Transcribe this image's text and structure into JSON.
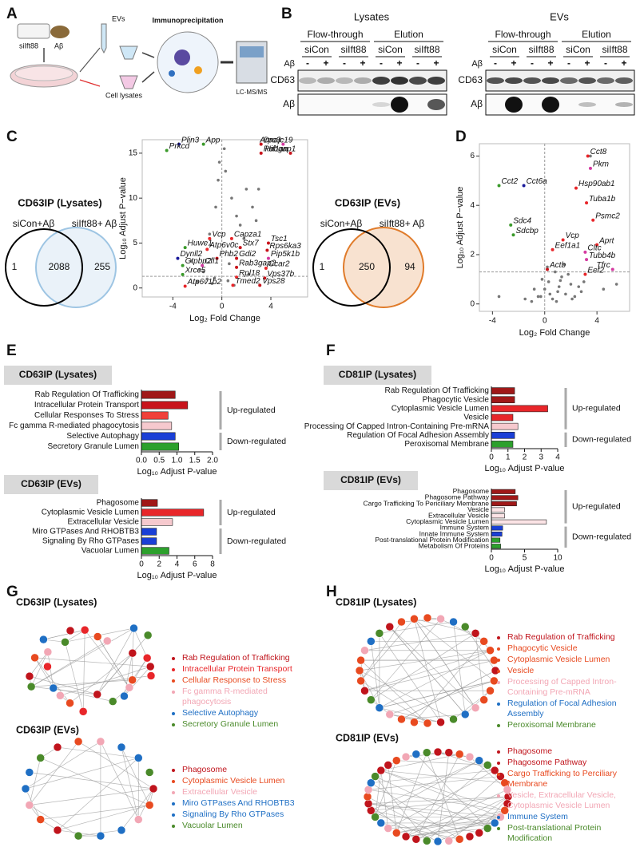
{
  "panel_labels": [
    "A",
    "B",
    "C",
    "D",
    "E",
    "F",
    "G",
    "H"
  ],
  "a": {
    "sirna": "siIft88",
    "treatment": "Aβ",
    "evs": "EVs",
    "lysates": "Cell lysates",
    "method": "Immunoprecipitation",
    "instrument": "LC-MS/MS"
  },
  "b": {
    "blots": [
      {
        "title": "Lysates",
        "groups": [
          "Flow-through",
          "Elution"
        ],
        "conditions": [
          "siCon",
          "siIft88",
          "siCon",
          "siIft88"
        ],
        "treatment_label": "Aβ",
        "treatments": [
          "-",
          "+",
          "-",
          "+",
          "-",
          "+",
          "-",
          "+"
        ],
        "rows": [
          "CD63",
          "Aβ"
        ]
      },
      {
        "title": "EVs",
        "groups": [
          "Flow-through",
          "Elution"
        ],
        "conditions": [
          "siCon",
          "siIft88",
          "siCon",
          "siIft88"
        ],
        "treatment_label": "Aβ",
        "treatments": [
          "-",
          "+",
          "-",
          "+",
          "-",
          "+",
          "-",
          "+"
        ],
        "rows": [
          "CD63",
          "Aβ"
        ]
      }
    ]
  },
  "venn": [
    {
      "title": "CD63IP (Lysates)",
      "sets": [
        "siCon+Aβ",
        "siIft88+ Aβ"
      ],
      "colors": [
        "#000000",
        "#9ec5e3"
      ],
      "counts": [
        1,
        2088,
        255
      ]
    },
    {
      "title": "CD63IP (EVs)",
      "sets": [
        "siCon+Aβ",
        "siIft88+ Aβ"
      ],
      "colors": [
        "#000000",
        "#e07b2a"
      ],
      "counts": [
        1,
        250,
        94
      ]
    }
  ],
  "chart_data": [
    {
      "type": "scatter",
      "xlabel": "Log₂ Fold Change",
      "ylabel": "Log₁₀ Adjust P−value",
      "xlim": [
        -6.5,
        7
      ],
      "ylim": [
        -1,
        16.5
      ],
      "xticks": [
        -4,
        0,
        4
      ],
      "yticks": [
        0,
        5,
        10,
        15
      ],
      "hline": 1.3,
      "vline": 0,
      "background_points": {
        "x": [
          -2.5,
          -1.8,
          -1,
          -0.5,
          -0.3,
          0.3,
          0.8,
          1.2,
          1.5,
          2,
          2.5,
          3,
          -1.2,
          -0.8,
          0.5,
          1,
          2.2,
          -2,
          -0.2,
          0.2,
          1.8,
          2.8,
          -1.5,
          0.6,
          -0.6
        ],
        "y": [
          3,
          2,
          6,
          9,
          12,
          13,
          10,
          8,
          7,
          11,
          9,
          11,
          1,
          0.5,
          0.8,
          0.3,
          1.5,
          0.7,
          14,
          15.5,
          5.5,
          7.5,
          1.8,
          2.7,
          1.1
        ]
      },
      "points": [
        {
          "label": "Plin3",
          "x": -3.5,
          "y": 16,
          "color": "#1a1a9a"
        },
        {
          "label": "Prkcd",
          "x": -4.5,
          "y": 15.3,
          "color": "#3a9a2a"
        },
        {
          "label": "App",
          "x": -1.5,
          "y": 16,
          "color": "#3a9a2a"
        },
        {
          "label": "Dnajc19",
          "x": 3.2,
          "y": 16,
          "color": "#c8141c"
        },
        {
          "label": "Arpc3",
          "x": 5,
          "y": 16,
          "color": "#d43aa0"
        },
        {
          "label": "Rabgap1",
          "x": 3.2,
          "y": 15,
          "color": "#c8141c"
        },
        {
          "label": "Hif1an",
          "x": 5.6,
          "y": 15,
          "color": "#c8141c"
        },
        {
          "label": "Vcp",
          "x": -1,
          "y": 5.5,
          "color": "#e8262a"
        },
        {
          "label": "Capza1",
          "x": 0.8,
          "y": 5.5,
          "color": "#e8262a"
        },
        {
          "label": "Tsc1",
          "x": 3.8,
          "y": 5,
          "color": "#c8141c"
        },
        {
          "label": "Stx7",
          "x": 1.5,
          "y": 4.5,
          "color": "#c8141c"
        },
        {
          "label": "Rps6ka3",
          "x": 3.7,
          "y": 4.2,
          "color": "#c8141c"
        },
        {
          "label": "Atp6v0c",
          "x": -1.2,
          "y": 4.3,
          "color": "#e8262a"
        },
        {
          "label": "Huwe1",
          "x": -3,
          "y": 4.5,
          "color": "#3a9a2a"
        },
        {
          "label": "Dynll2",
          "x": -3.6,
          "y": 3.3,
          "color": "#1a1a9a"
        },
        {
          "label": "Phb2",
          "x": -0.4,
          "y": 3.3,
          "color": "#c8141c"
        },
        {
          "label": "Gdi2",
          "x": 1.2,
          "y": 3.3,
          "color": "#c8141c"
        },
        {
          "label": "Pip5k1b",
          "x": 3.8,
          "y": 3.3,
          "color": "#d43aa0"
        },
        {
          "label": "Gtpbp2",
          "x": -3.2,
          "y": 2.5,
          "color": "#3a9a2a"
        },
        {
          "label": "Cfl1",
          "x": -1.6,
          "y": 2.5,
          "color": "#d43aa0"
        },
        {
          "label": "Xrcc5",
          "x": -3.2,
          "y": 1.5,
          "color": "#3a9a2a"
        },
        {
          "label": "Rab3gap2",
          "x": 1.2,
          "y": 2.3,
          "color": "#c8141c"
        },
        {
          "label": "Ccar2",
          "x": 3.6,
          "y": 2.2,
          "color": "#e8262a"
        },
        {
          "label": "Rpl18",
          "x": 1.2,
          "y": 1.2,
          "color": "#e8262a"
        },
        {
          "label": "Vps37b",
          "x": 3.5,
          "y": 1.1,
          "color": "#c8141c"
        },
        {
          "label": "Atp6v1b2",
          "x": -3,
          "y": 0.2,
          "color": "#e8262a"
        },
        {
          "label": "Tmed2",
          "x": 0.9,
          "y": 0.3,
          "color": "#e8262a"
        },
        {
          "label": "Vps28",
          "x": 3.1,
          "y": 0.3,
          "color": "#c8141c"
        }
      ]
    },
    {
      "type": "scatter",
      "xlabel": "Log₂ Fold Change",
      "ylabel": "Log₁₀ Adjust P−value",
      "xlim": [
        -5,
        6.5
      ],
      "ylim": [
        -0.3,
        6.5
      ],
      "xticks": [
        -4,
        0,
        4
      ],
      "yticks": [
        0,
        2,
        4,
        6
      ],
      "hline": 1.3,
      "vline": 0,
      "background_points": {
        "x": [
          -0.5,
          0,
          0.3,
          0.6,
          1,
          1.3,
          1.6,
          2,
          2.3,
          2.6,
          -1,
          -0.2,
          0.8,
          1.1,
          1.8,
          2.1,
          0.4,
          -0.8,
          3,
          4.5,
          5.5,
          -3.5,
          -1.5,
          0.2,
          1.5,
          2.8,
          0.9,
          -0.3,
          1.2,
          3.5
        ],
        "y": [
          0.3,
          0.6,
          0.9,
          0.2,
          0.5,
          1.1,
          0.4,
          0.8,
          0.3,
          0.7,
          0.1,
          1.0,
          1.3,
          0.7,
          1.2,
          0.2,
          0.4,
          0.6,
          0.9,
          0.6,
          0.8,
          0.3,
          0.2,
          1.5,
          1.6,
          0.5,
          0.1,
          0.3,
          0.95,
          6.0
        ]
      },
      "points": [
        {
          "label": "Cct8",
          "x": 3.3,
          "y": 6,
          "color": "#e8262a"
        },
        {
          "label": "Pkm",
          "x": 3.5,
          "y": 5.5,
          "color": "#d43aa0"
        },
        {
          "label": "Cct2",
          "x": -3.5,
          "y": 4.8,
          "color": "#3a9a2a"
        },
        {
          "label": "Cct6a",
          "x": -1.6,
          "y": 4.8,
          "color": "#1a1a9a"
        },
        {
          "label": "Hsp90ab1",
          "x": 2.4,
          "y": 4.7,
          "color": "#e8262a"
        },
        {
          "label": "Tuba1b",
          "x": 3.2,
          "y": 4.1,
          "color": "#e8262a"
        },
        {
          "label": "Sdc4",
          "x": -2.6,
          "y": 3.2,
          "color": "#3a9a2a"
        },
        {
          "label": "Psmc2",
          "x": 3.7,
          "y": 3.4,
          "color": "#e8262a"
        },
        {
          "label": "Sdcbp",
          "x": -2.4,
          "y": 2.8,
          "color": "#3a9a2a"
        },
        {
          "label": "Vcp",
          "x": 1.4,
          "y": 2.6,
          "color": "#e8262a"
        },
        {
          "label": "Aprt",
          "x": 4,
          "y": 2.4,
          "color": "#e8262a"
        },
        {
          "label": "Eef1a1",
          "x": 0.6,
          "y": 2.2,
          "color": "#e8262a"
        },
        {
          "label": "Cltc",
          "x": 3.1,
          "y": 2.1,
          "color": "#d43aa0"
        },
        {
          "label": "Tubb4b",
          "x": 3.2,
          "y": 1.8,
          "color": "#d43aa0"
        },
        {
          "label": "Actb",
          "x": 0.2,
          "y": 1.4,
          "color": "#c8141c"
        },
        {
          "label": "Eef2",
          "x": 3.1,
          "y": 1.2,
          "color": "#e8262a"
        },
        {
          "label": "Tfrc",
          "x": 5.2,
          "y": 1.4,
          "color": "#d43aa0"
        }
      ]
    },
    {
      "type": "barh",
      "title": "CD63IP (Lysates)",
      "xlabel": "Log₁₀ Adjust P-value",
      "categories": [
        "Rab Regulation Of Trafficking",
        "Intracellular Protein Transport",
        "Cellular Responses To Stress",
        "Fc gamma R-mediated phagocytosis",
        "Selective Autophagy",
        "Secretory Granule Lumen"
      ],
      "values": [
        0.95,
        1.3,
        0.75,
        0.85,
        0.95,
        1.05
      ],
      "colors": [
        "#a01818",
        "#c8141c",
        "#f0403a",
        "#f6c9ce",
        "#1a3fd6",
        "#2ca02c"
      ],
      "xlim": [
        0,
        2
      ],
      "xticks": [
        {
          "value": 0,
          "label": "0.0"
        },
        0.5,
        {
          "value": 1,
          "label": "1.0"
        },
        1.5,
        {
          "value": 2,
          "label": "2.0"
        }
      ],
      "groups": [
        {
          "label": "Up-regulated",
          "count": 4
        },
        {
          "label": "Down-regulated",
          "count": 2
        }
      ]
    },
    {
      "type": "barh",
      "title": "CD63IP (EVs)",
      "xlabel": "Log₁₀ Adjust P-value",
      "categories": [
        "Phagosome",
        "Cytoplasmic Vesicle Lumen",
        "Extracellular Vesicle",
        "Miro GTPases And RHOBTB3",
        "Signaling By Rho GTPases",
        "Vacuolar Lumen"
      ],
      "values": [
        1.8,
        7.0,
        3.5,
        1.7,
        1.7,
        3.1
      ],
      "colors": [
        "#a01818",
        "#e8262a",
        "#f6c9ce",
        "#1a3fd6",
        "#1a3fd6",
        "#2ca02c"
      ],
      "xlim": [
        0,
        8
      ],
      "xticks": [
        0,
        2,
        4,
        6,
        8
      ],
      "groups": [
        {
          "label": "Up-regulated",
          "count": 3
        },
        {
          "label": "Down-regulated",
          "count": 3
        }
      ]
    },
    {
      "type": "barh",
      "title": "CD81IP (Lysates)",
      "xlabel": "Log₁₀ Adjust P-value",
      "categories": [
        "Rab Regulation Of Trafficking",
        "Phagocytic Vesicle",
        "Cytoplasmic Vesicle Lumen",
        "Vesicle",
        "Processing Of Capped Intron-Containing Pre-mRNA",
        "Regulation Of Focal Adhesion Assembly",
        "Peroxisomal Membrane"
      ],
      "values": [
        1.4,
        1.4,
        3.4,
        1.3,
        1.6,
        1.4,
        1.3
      ],
      "colors": [
        "#a01818",
        "#a01818",
        "#e8262a",
        "#e8262a",
        "#f6c9ce",
        "#1a3fd6",
        "#2ca02c"
      ],
      "xlim": [
        0,
        4
      ],
      "xticks": [
        0,
        1,
        2,
        3,
        4
      ],
      "groups": [
        {
          "label": "Up-regulated",
          "count": 5
        },
        {
          "label": "Down-regulated",
          "count": 2
        }
      ]
    },
    {
      "type": "barh",
      "title": "CD81IP (EVs)",
      "xlabel": "Log₁₀ Adjust P-value",
      "categories": [
        "Phagosome",
        "Phagosome Pathway",
        "Cargo Trafficking To Periciliary Membrane",
        "Vesicle",
        "Extracellular Vesicle",
        "Cytoplasmic Vesicle Lumen",
        "Immune System",
        "Innate Immune System",
        "Post-translational Protein Modification",
        "Metabolism Of Proteins"
      ],
      "values": [
        3.6,
        4.0,
        3.8,
        2.0,
        2.0,
        8.3,
        1.7,
        1.6,
        1.3,
        1.4
      ],
      "colors": [
        "#a01818",
        "#a01818",
        "#a01818",
        "#fbe3e5",
        "#fbe3e5",
        "#fbe3e5",
        "#1a3fd6",
        "#1a3fd6",
        "#2ca02c",
        "#2ca02c"
      ],
      "xlim": [
        0,
        10
      ],
      "xticks": [
        0,
        5,
        10
      ],
      "groups": [
        {
          "label": "Up-regulated",
          "count": 6
        },
        {
          "label": "Down-regulated",
          "count": 4
        }
      ]
    }
  ],
  "networks": [
    {
      "title": "CD63IP (Lysates)",
      "legend": [
        {
          "label": "Rab Regulation of Trafficking",
          "color": "#c0141c"
        },
        {
          "label": "Intracellular Protein Transport",
          "color": "#e8262a"
        },
        {
          "label": "Cellular Response to Stress",
          "color": "#e84a20"
        },
        {
          "label": "Fc gamma R-mediated phagocytosis",
          "color": "#f2a7b5"
        },
        {
          "label": "Selective Autophagy",
          "color": "#1f6fc4"
        },
        {
          "label": "Secretory Granule Lumen",
          "color": "#4a8a2a"
        }
      ]
    },
    {
      "title": "CD63IP (EVs)",
      "legend": [
        {
          "label": "Phagosome",
          "color": "#c0141c"
        },
        {
          "label": "Cytoplasmic Vesicle Lumen",
          "color": "#e84a20"
        },
        {
          "label": "Extracellular Vesicle",
          "color": "#f2a7b5"
        },
        {
          "label": "Miro GTPases And RHOBTB3",
          "color": "#1f6fc4"
        },
        {
          "label": "Signaling By Rho GTPases",
          "color": "#1f6fc4"
        },
        {
          "label": "Vacuolar Lumen",
          "color": "#4a8a2a"
        }
      ]
    },
    {
      "title": "CD81IP (Lysates)",
      "legend": [
        {
          "label": "Rab Regulation of Trafficking",
          "color": "#c0141c"
        },
        {
          "label": "Phagocytic Vesicle",
          "color": "#e84a20"
        },
        {
          "label": "Cytoplasmic Vesicle Lumen",
          "color": "#e84a20"
        },
        {
          "label": "Vesicle",
          "color": "#e84a20"
        },
        {
          "label": "Processing of Capped Intron-Containing Pre-mRNA",
          "color": "#f2a7b5"
        },
        {
          "label": "Regulation of Focal Adhesion Assembly",
          "color": "#1f6fc4"
        },
        {
          "label": "Peroxisomal Membrane",
          "color": "#4a8a2a"
        }
      ]
    },
    {
      "title": "CD81IP (EVs)",
      "legend": [
        {
          "label": "Phagosome",
          "color": "#c0141c"
        },
        {
          "label": "Phagosome Pathway",
          "color": "#c0141c"
        },
        {
          "label": "Cargo Trafficking to Perciliary Membrane",
          "color": "#e84a20"
        },
        {
          "label": "Vesicle, Extracellular Vesicle, Cytoplasmic Vesicle Lumen",
          "color": "#f2a7b5"
        },
        {
          "label": "Immune System",
          "color": "#1f6fc4"
        },
        {
          "label": "Post-translational Protein Modification",
          "color": "#4a8a2a"
        }
      ]
    }
  ]
}
